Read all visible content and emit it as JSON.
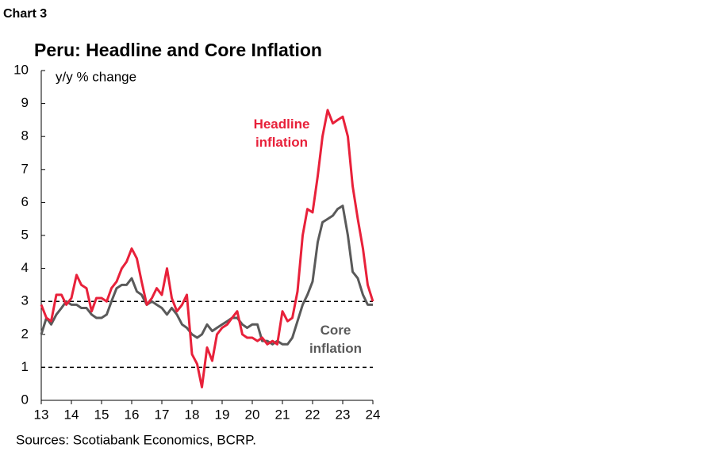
{
  "chart_data": {
    "type": "line",
    "label": "Chart 3",
    "title": "Peru: Headline and Core Inflation",
    "ylabel": "y/y % change",
    "source": "Sources: Scotiabank Economics, BCRP.",
    "x": [
      13,
      13.17,
      13.33,
      13.5,
      13.67,
      13.83,
      14,
      14.17,
      14.33,
      14.5,
      14.67,
      14.83,
      15,
      15.17,
      15.33,
      15.5,
      15.67,
      15.83,
      16,
      16.17,
      16.33,
      16.5,
      16.67,
      16.83,
      17,
      17.17,
      17.33,
      17.5,
      17.67,
      17.83,
      18,
      18.17,
      18.33,
      18.5,
      18.67,
      18.83,
      19,
      19.17,
      19.33,
      19.5,
      19.67,
      19.83,
      20,
      20.17,
      20.33,
      20.5,
      20.67,
      20.83,
      21,
      21.17,
      21.33,
      21.5,
      21.67,
      21.83,
      22,
      22.17,
      22.33,
      22.5,
      22.67,
      22.83,
      23,
      23.17,
      23.33,
      23.5,
      23.67,
      23.83,
      24
    ],
    "series": [
      {
        "name": "Headline inflation",
        "color": "#e8213a",
        "values": [
          2.9,
          2.5,
          2.4,
          3.2,
          3.2,
          2.9,
          3.1,
          3.8,
          3.5,
          3.4,
          2.7,
          3.1,
          3.1,
          3.0,
          3.4,
          3.6,
          4.0,
          4.2,
          4.6,
          4.3,
          3.6,
          2.9,
          3.1,
          3.4,
          3.2,
          4.0,
          3.1,
          2.7,
          2.9,
          3.2,
          1.4,
          1.1,
          0.4,
          1.6,
          1.2,
          2.0,
          2.2,
          2.3,
          2.5,
          2.7,
          2.0,
          1.9,
          1.9,
          1.8,
          1.9,
          1.7,
          1.8,
          1.7,
          2.7,
          2.4,
          2.5,
          3.3,
          5.0,
          5.8,
          5.7,
          6.8,
          8.0,
          8.8,
          8.4,
          8.5,
          8.6,
          8.0,
          6.5,
          5.5,
          4.6,
          3.5,
          3.0
        ]
      },
      {
        "name": "Core inflation",
        "color": "#5a5a5a",
        "values": [
          2.0,
          2.5,
          2.3,
          2.6,
          2.8,
          3.0,
          2.9,
          2.9,
          2.8,
          2.8,
          2.6,
          2.5,
          2.5,
          2.6,
          3.0,
          3.4,
          3.5,
          3.5,
          3.7,
          3.3,
          3.2,
          2.9,
          3.0,
          2.9,
          2.8,
          2.6,
          2.8,
          2.6,
          2.3,
          2.2,
          2.0,
          1.9,
          2.0,
          2.3,
          2.1,
          2.2,
          2.3,
          2.4,
          2.5,
          2.5,
          2.3,
          2.2,
          2.3,
          2.3,
          1.8,
          1.8,
          1.7,
          1.8,
          1.7,
          1.7,
          1.9,
          2.4,
          2.9,
          3.2,
          3.6,
          4.8,
          5.4,
          5.5,
          5.6,
          5.8,
          5.9,
          5.0,
          3.9,
          3.7,
          3.2,
          2.9,
          2.9
        ]
      }
    ],
    "hlines": [
      1,
      3
    ],
    "xlim": [
      13,
      24
    ],
    "xticks": [
      13,
      14,
      15,
      16,
      17,
      18,
      19,
      20,
      21,
      22,
      23,
      24
    ],
    "ylim": [
      0,
      10
    ],
    "yticks": [
      0,
      1,
      2,
      3,
      4,
      5,
      6,
      7,
      8,
      9,
      10
    ]
  }
}
